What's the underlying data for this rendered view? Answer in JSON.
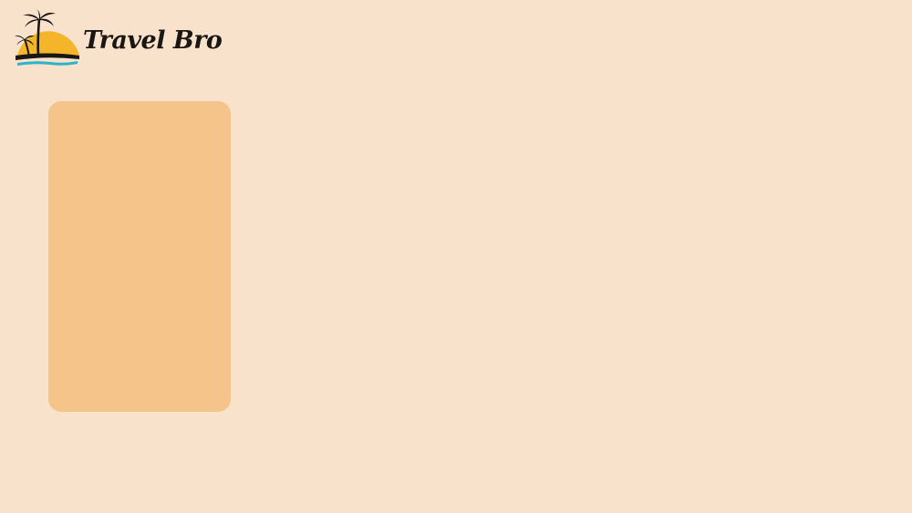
{
  "header": {
    "brand_name": "Travel Bro",
    "logo_icon": "sunset-palm-tree-icon"
  },
  "colors": {
    "background": "#f9e2cb",
    "card": "#f5c48b",
    "sun": "#f5b52a",
    "water": "#2bb3c9",
    "text": "#1a1614"
  }
}
